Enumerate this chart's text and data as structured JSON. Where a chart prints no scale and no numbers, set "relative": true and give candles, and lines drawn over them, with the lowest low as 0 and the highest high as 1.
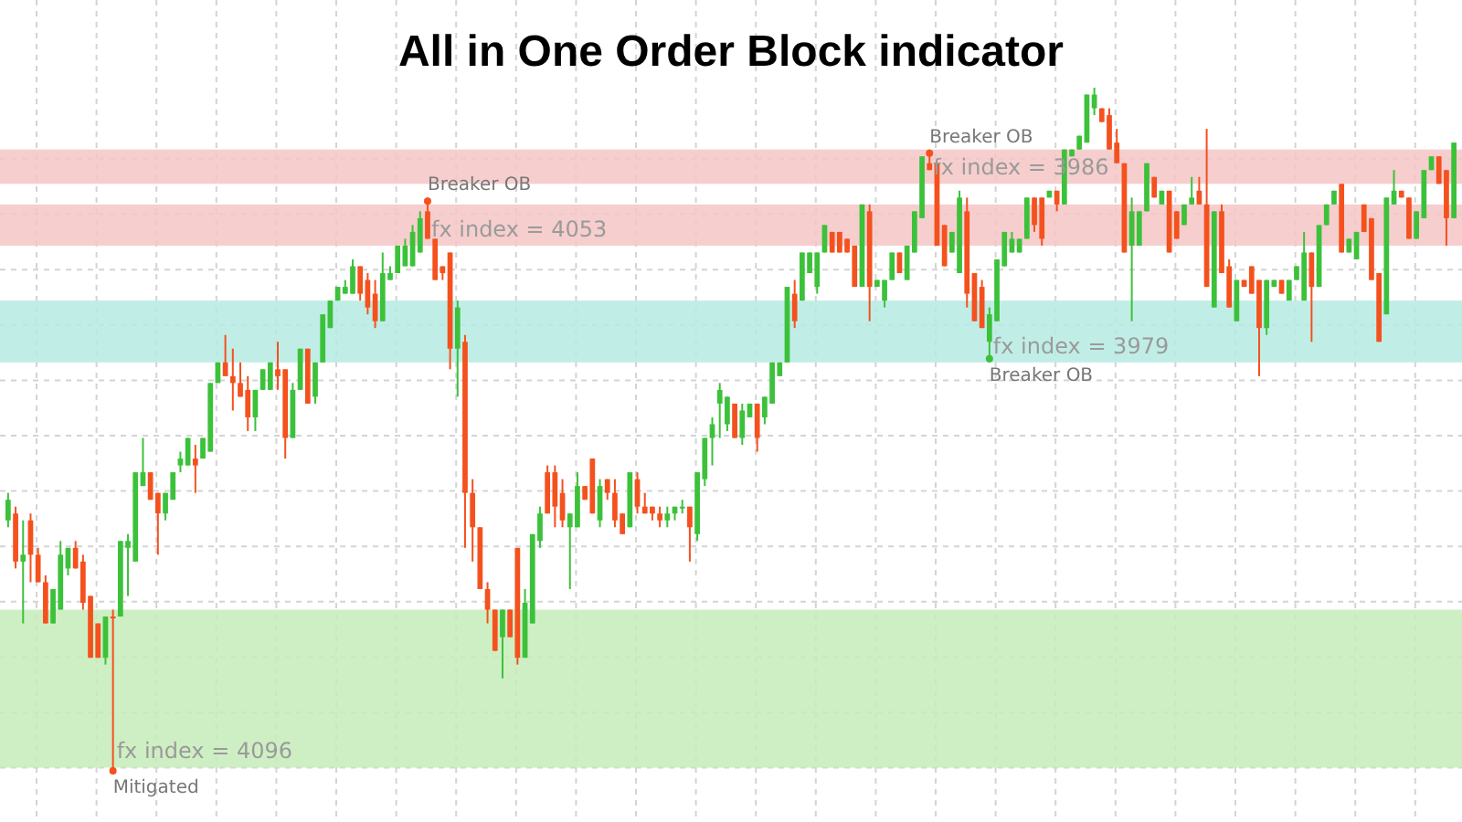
{
  "chart_data": {
    "type": "candlestick",
    "title": "All in One Order Block indicator",
    "relative": true,
    "grid": true,
    "colors": [
      "#3cc13b",
      "#f4511e",
      "#3cc13b",
      "#f4511e",
      "#f4511e",
      "#f4511e",
      "#3cc13b",
      "#3cc13b",
      "#3cc13b",
      "#f4511e",
      "#f4511e",
      "#f4511e",
      "#f4511e",
      "#3cc13b",
      "#f4511e",
      "#3cc13b",
      "#3cc13b",
      "#3cc13b",
      "#3cc13b",
      "#f4511e",
      "#f4511e",
      "#3cc13b",
      "#3cc13b",
      "#3cc13b",
      "#3cc13b",
      "#f4511e",
      "#3cc13b",
      "#3cc13b",
      "#3cc13b",
      "#f4511e",
      "#f4511e",
      "#f4511e",
      "#f4511e",
      "#3cc13b",
      "#3cc13b",
      "#3cc13b",
      "#f4511e",
      "#f4511e",
      "#3cc13b",
      "#3cc13b",
      "#f4511e",
      "#3cc13b",
      "#3cc13b",
      "#3cc13b",
      "#3cc13b",
      "#3cc13b",
      "#3cc13b",
      "#f4511e",
      "#f4511e",
      "#f4511e",
      "#3cc13b",
      "#3cc13b",
      "#3cc13b",
      "#3cc13b",
      "#3cc13b",
      "#3cc13b",
      "#f4511e",
      "#f4511e",
      "#f4511e",
      "#f4511e",
      "#3cc13b",
      "#f4511e",
      "#f4511e",
      "#f4511e",
      "#f4511e",
      "#f4511e",
      "#3cc13b",
      "#f4511e",
      "#f4511e",
      "#3cc13b",
      "#3cc13b",
      "#3cc13b",
      "#f4511e",
      "#f4511e",
      "#f4511e",
      "#3cc13b",
      "#3cc13b",
      "#f4511e",
      "#f4511e",
      "#3cc13b",
      "#f4511e",
      "#f4511e",
      "#f4511e",
      "#3cc13b",
      "#f4511e",
      "#f4511e",
      "#f4511e",
      "#f4511e",
      "#3cc13b",
      "#3cc13b",
      "#3cc13b",
      "#f4511e",
      "#3cc13b",
      "#3cc13b",
      "#3cc13b",
      "#3cc13b",
      "#3cc13b",
      "#f4511e",
      "#3cc13b",
      "#3cc13b",
      "#f4511e",
      "#3cc13b",
      "#3cc13b",
      "#3cc13b",
      "#3cc13b",
      "#f4511e",
      "#3cc13b",
      "#3cc13b",
      "#3cc13b",
      "#3cc13b",
      "#f4511e",
      "#f4511e",
      "#f4511e",
      "#f4511e",
      "#3cc13b",
      "#f4511e",
      "#3cc13b",
      "#3cc13b",
      "#3cc13b",
      "#f4511e",
      "#3cc13b",
      "#3cc13b",
      "#3cc13b",
      "#f4511e",
      "#f4511e",
      "#f4511e",
      "#3cc13b",
      "#3cc13b",
      "#f4511e",
      "#f4511e",
      "#f4511e",
      "#3cc13b",
      "#3cc13b",
      "#3cc13b",
      "#3cc13b",
      "#3cc13b",
      "#3cc13b",
      "#f4511e",
      "#f4511e",
      "#3cc13b",
      "#f4511e",
      "#3cc13b",
      "#3cc13b",
      "#3cc13b",
      "#3cc13b",
      "#3cc13b",
      "#f4511e",
      "#f4511e",
      "#f4511e",
      "#f4511e",
      "#3cc13b",
      "#3cc13b",
      "#3cc13b",
      "#f4511e",
      "#3cc13b",
      "#f4511e",
      "#f4511e",
      "#3cc13b",
      "#3cc13b",
      "#f4511e",
      "#f4511e",
      "#3cc13b",
      "#f4511e",
      "#f4511e",
      "#3cc13b",
      "#f4511e",
      "#f4511e",
      "#f4511e",
      "#3cc13b",
      "#3cc13b",
      "#f4511e",
      "#3cc13b",
      "#3cc13b",
      "#3cc13b",
      "#f4511e",
      "#3cc13b",
      "#3cc13b",
      "#3cc13b",
      "#f4511e",
      "#3cc13b",
      "#3cc13b",
      "#f4511e",
      "#f4511e",
      "#f4511e",
      "#3cc13b",
      "#3cc13b",
      "#f4511e",
      "#f4511e",
      "#3cc13b",
      "#3cc13b",
      "#3cc13b",
      "#f4511e",
      "#f4511e",
      "#3cc13b"
    ],
    "categories": [
      null,
      null,
      null,
      null,
      null,
      null,
      null,
      null,
      null,
      null,
      null,
      null,
      null,
      null,
      null,
      null,
      null,
      null,
      null,
      null,
      null,
      null,
      null,
      null,
      null,
      null,
      null,
      null,
      null,
      null,
      null,
      null,
      null,
      null,
      null,
      null,
      null,
      null,
      null,
      null,
      null,
      null,
      null,
      null,
      null,
      null,
      null,
      null,
      null,
      null,
      null,
      null,
      null,
      null,
      null,
      null,
      null,
      null,
      null,
      null,
      null,
      null,
      null,
      null,
      null,
      null,
      null,
      null,
      null,
      null,
      null,
      null,
      null,
      null,
      null,
      null,
      null,
      null,
      null,
      null,
      null,
      null,
      null,
      null,
      null,
      null,
      null,
      null,
      null,
      null,
      null,
      null,
      null,
      null,
      null,
      null,
      null,
      null,
      null,
      null,
      null,
      null,
      null,
      null,
      null,
      null,
      null,
      null,
      null,
      null,
      null,
      null,
      null,
      null,
      null,
      null,
      null,
      null,
      null,
      null,
      null,
      null,
      null,
      null,
      null,
      null,
      null,
      null,
      null,
      null,
      null,
      null,
      null,
      null,
      null,
      null,
      null,
      null,
      null,
      null,
      null,
      null,
      null,
      null,
      null,
      null,
      null,
      null,
      null,
      null,
      null,
      null,
      null,
      null,
      null,
      null,
      null,
      null,
      null,
      null,
      null,
      null,
      null,
      null,
      null,
      null,
      null,
      null,
      null,
      null,
      null,
      null,
      null,
      null,
      null,
      null,
      null,
      null,
      null,
      null,
      null,
      null,
      null,
      null,
      null,
      null,
      null,
      null,
      null,
      null,
      null,
      null,
      null,
      null
    ],
    "ohlc": [
      [
        0.37,
        0.41,
        0.36,
        0.4
      ],
      [
        0.38,
        0.39,
        0.3,
        0.31
      ],
      [
        0.31,
        0.37,
        0.22,
        0.32
      ],
      [
        0.37,
        0.38,
        0.28,
        0.32
      ],
      [
        0.32,
        0.33,
        0.28,
        0.28
      ],
      [
        0.28,
        0.29,
        0.22,
        0.22
      ],
      [
        0.22,
        0.27,
        0.22,
        0.27
      ],
      [
        0.24,
        0.34,
        0.24,
        0.32
      ],
      [
        0.3,
        0.33,
        0.29,
        0.33
      ],
      [
        0.33,
        0.34,
        0.3,
        0.3
      ],
      [
        0.31,
        0.32,
        0.24,
        0.25
      ],
      [
        0.26,
        0.26,
        0.17,
        0.17
      ],
      [
        0.22,
        0.22,
        0.17,
        0.17
      ],
      [
        0.17,
        0.23,
        0.16,
        0.23
      ],
      [
        0.23,
        0.24,
        0,
        0.23
      ],
      [
        0.23,
        0.34,
        0.23,
        0.34
      ],
      [
        0.33,
        0.35,
        0.26,
        0.34
      ],
      [
        0.31,
        0.44,
        0.31,
        0.44
      ],
      [
        0.42,
        0.49,
        0.42,
        0.44
      ],
      [
        0.44,
        0.44,
        0.4,
        0.4
      ],
      [
        0.41,
        0.41,
        0.32,
        0.38
      ],
      [
        0.38,
        0.41,
        0.37,
        0.41
      ],
      [
        0.4,
        0.44,
        0.4,
        0.44
      ],
      [
        0.45,
        0.47,
        0.44,
        0.46
      ],
      [
        0.45,
        0.49,
        0.45,
        0.49
      ],
      [
        0.46,
        0.48,
        0.41,
        0.45
      ],
      [
        0.46,
        0.49,
        0.46,
        0.49
      ],
      [
        0.47,
        0.57,
        0.47,
        0.57
      ],
      [
        0.57,
        0.6,
        0.57,
        0.6
      ],
      [
        0.6,
        0.64,
        0.58,
        0.58
      ],
      [
        0.58,
        0.62,
        0.53,
        0.57
      ],
      [
        0.57,
        0.6,
        0.55,
        0.55
      ],
      [
        0.56,
        0.58,
        0.5,
        0.52
      ],
      [
        0.52,
        0.56,
        0.5,
        0.56
      ],
      [
        0.56,
        0.59,
        0.56,
        0.59
      ],
      [
        0.56,
        0.6,
        0.56,
        0.6
      ],
      [
        0.59,
        0.63,
        0.56,
        0.58
      ],
      [
        0.59,
        0.59,
        0.46,
        0.49
      ],
      [
        0.49,
        0.57,
        0.49,
        0.56
      ],
      [
        0.56,
        0.62,
        0.56,
        0.62
      ],
      [
        0.62,
        0.62,
        0.54,
        0.54
      ],
      [
        0.55,
        0.6,
        0.54,
        0.6
      ],
      [
        0.6,
        0.67,
        0.6,
        0.67
      ],
      [
        0.65,
        0.69,
        0.65,
        0.69
      ],
      [
        0.69,
        0.71,
        0.69,
        0.71
      ],
      [
        0.7,
        0.72,
        0.7,
        0.71
      ],
      [
        0.7,
        0.75,
        0.7,
        0.74
      ],
      [
        0.74,
        0.74,
        0.69,
        0.7
      ],
      [
        0.72,
        0.73,
        0.67,
        0.68
      ],
      [
        0.7,
        0.72,
        0.65,
        0.66
      ],
      [
        0.66,
        0.76,
        0.66,
        0.73
      ],
      [
        0.72,
        0.74,
        0.72,
        0.73
      ],
      [
        0.73,
        0.77,
        0.73,
        0.77
      ],
      [
        0.74,
        0.78,
        0.74,
        0.77
      ],
      [
        0.74,
        0.8,
        0.74,
        0.79
      ],
      [
        0.76,
        0.82,
        0.76,
        0.81
      ],
      [
        0.82,
        0.84,
        0.78,
        0.78
      ],
      [
        0.78,
        0.78,
        0.72,
        0.72
      ],
      [
        0.74,
        0.74,
        0.72,
        0.73
      ],
      [
        0.76,
        0.76,
        0.59,
        0.62
      ],
      [
        0.62,
        0.69,
        0.55,
        0.68
      ],
      [
        0.63,
        0.64,
        0.33,
        0.41
      ],
      [
        0.41,
        0.43,
        0.31,
        0.36
      ],
      [
        0.36,
        0.36,
        0.27,
        0.27
      ],
      [
        0.27,
        0.28,
        0.22,
        0.24
      ],
      [
        0.24,
        0.24,
        0.18,
        0.18
      ],
      [
        0.2,
        0.24,
        0.14,
        0.24
      ],
      [
        0.24,
        0.24,
        0.2,
        0.2
      ],
      [
        0.33,
        0.33,
        0.16,
        0.17
      ],
      [
        0.17,
        0.27,
        0.17,
        0.25
      ],
      [
        0.22,
        0.35,
        0.22,
        0.35
      ],
      [
        0.34,
        0.39,
        0.33,
        0.38
      ],
      [
        0.44,
        0.45,
        0.38,
        0.38
      ],
      [
        0.44,
        0.45,
        0.36,
        0.39
      ],
      [
        0.41,
        0.43,
        0.36,
        0.37
      ],
      [
        0.36,
        0.38,
        0.27,
        0.38
      ],
      [
        0.36,
        0.44,
        0.36,
        0.42
      ],
      [
        0.42,
        0.42,
        0.4,
        0.4
      ],
      [
        0.46,
        0.46,
        0.38,
        0.38
      ],
      [
        0.37,
        0.43,
        0.36,
        0.42
      ],
      [
        0.43,
        0.43,
        0.4,
        0.41
      ],
      [
        0.41,
        0.43,
        0.36,
        0.37
      ],
      [
        0.38,
        0.38,
        0.35,
        0.35
      ],
      [
        0.36,
        0.44,
        0.36,
        0.44
      ],
      [
        0.43,
        0.44,
        0.38,
        0.39
      ],
      [
        0.39,
        0.41,
        0.38,
        0.38
      ],
      [
        0.39,
        0.39,
        0.37,
        0.38
      ],
      [
        0.38,
        0.39,
        0.36,
        0.37
      ],
      [
        0.37,
        0.39,
        0.36,
        0.38
      ],
      [
        0.38,
        0.39,
        0.37,
        0.39
      ],
      [
        0.39,
        0.4,
        0.38,
        0.39
      ],
      [
        0.39,
        0.39,
        0.31,
        0.36
      ],
      [
        0.35,
        0.44,
        0.34,
        0.44
      ],
      [
        0.43,
        0.49,
        0.42,
        0.49
      ],
      [
        0.49,
        0.52,
        0.45,
        0.51
      ],
      [
        0.54,
        0.57,
        0.49,
        0.56
      ],
      [
        0.51,
        0.55,
        0.5,
        0.55
      ],
      [
        0.54,
        0.54,
        0.49,
        0.49
      ],
      [
        0.49,
        0.54,
        0.48,
        0.53
      ],
      [
        0.52,
        0.54,
        0.52,
        0.54
      ],
      [
        0.54,
        0.54,
        0.47,
        0.49
      ],
      [
        0.52,
        0.55,
        0.51,
        0.55
      ],
      [
        0.54,
        0.6,
        0.54,
        0.6
      ],
      [
        0.58,
        0.6,
        0.58,
        0.6
      ],
      [
        0.6,
        0.71,
        0.6,
        0.71
      ],
      [
        0.7,
        0.72,
        0.65,
        0.66
      ],
      [
        0.69,
        0.76,
        0.69,
        0.76
      ],
      [
        0.73,
        0.76,
        0.73,
        0.76
      ],
      [
        0.71,
        0.76,
        0.7,
        0.76
      ],
      [
        0.76,
        0.8,
        0.76,
        0.8
      ],
      [
        0.79,
        0.79,
        0.76,
        0.76
      ],
      [
        0.79,
        0.79,
        0.76,
        0.76
      ],
      [
        0.78,
        0.78,
        0.76,
        0.76
      ],
      [
        0.77,
        0.77,
        0.71,
        0.71
      ],
      [
        0.71,
        0.83,
        0.71,
        0.83
      ],
      [
        0.82,
        0.83,
        0.66,
        0.71
      ],
      [
        0.71,
        0.72,
        0.71,
        0.72
      ],
      [
        0.69,
        0.72,
        0.68,
        0.72
      ],
      [
        0.72,
        0.76,
        0.72,
        0.76
      ],
      [
        0.76,
        0.76,
        0.73,
        0.73
      ],
      [
        0.72,
        0.77,
        0.72,
        0.77
      ],
      [
        0.76,
        0.82,
        0.76,
        0.82
      ],
      [
        0.81,
        0.9,
        0.81,
        0.9
      ],
      [
        0.89,
        0.91,
        0.88,
        0.88
      ],
      [
        0.89,
        0.89,
        0.77,
        0.77
      ],
      [
        0.8,
        0.8,
        0.74,
        0.74
      ],
      [
        0.76,
        0.79,
        0.76,
        0.79
      ],
      [
        0.73,
        0.85,
        0.73,
        0.84
      ],
      [
        0.82,
        0.84,
        0.68,
        0.7
      ],
      [
        0.73,
        0.73,
        0.66,
        0.66
      ],
      [
        0.71,
        0.72,
        0.65,
        0.65
      ],
      [
        0.63,
        0.68,
        0.6,
        0.67
      ],
      [
        0.66,
        0.75,
        0.66,
        0.75
      ],
      [
        0.74,
        0.79,
        0.74,
        0.79
      ],
      [
        0.76,
        0.79,
        0.76,
        0.78
      ],
      [
        0.76,
        0.78,
        0.76,
        0.78
      ],
      [
        0.78,
        0.84,
        0.78,
        0.84
      ],
      [
        0.84,
        0.84,
        0.79,
        0.8
      ],
      [
        0.84,
        0.84,
        0.77,
        0.78
      ],
      [
        0.84,
        0.85,
        0.84,
        0.85
      ],
      [
        0.85,
        0.85,
        0.82,
        0.83
      ],
      [
        0.83,
        0.91,
        0.83,
        0.91
      ],
      [
        0.9,
        0.91,
        0.9,
        0.91
      ],
      [
        0.91,
        0.93,
        0.91,
        0.93
      ],
      [
        0.92,
        0.99,
        0.92,
        0.99
      ],
      [
        0.97,
        1,
        0.96,
        0.99
      ],
      [
        0.97,
        0.97,
        0.95,
        0.95
      ],
      [
        0.96,
        0.97,
        0.91,
        0.91
      ],
      [
        0.92,
        0.94,
        0.89,
        0.89
      ],
      [
        0.89,
        0.89,
        0.76,
        0.76
      ],
      [
        0.77,
        0.84,
        0.66,
        0.82
      ],
      [
        0.77,
        0.82,
        0.77,
        0.82
      ],
      [
        0.82,
        0.89,
        0.82,
        0.89
      ],
      [
        0.87,
        0.87,
        0.84,
        0.84
      ],
      [
        0.83,
        0.85,
        0.83,
        0.85
      ],
      [
        0.85,
        0.85,
        0.76,
        0.76
      ],
      [
        0.82,
        0.82,
        0.78,
        0.78
      ],
      [
        0.8,
        0.83,
        0.8,
        0.83
      ],
      [
        0.83,
        0.87,
        0.83,
        0.84
      ],
      [
        0.85,
        0.87,
        0.83,
        0.83
      ],
      [
        0.83,
        0.94,
        0.71,
        0.71
      ],
      [
        0.68,
        0.82,
        0.68,
        0.82
      ],
      [
        0.82,
        0.83,
        0.73,
        0.73
      ],
      [
        0.74,
        0.75,
        0.68,
        0.68
      ],
      [
        0.66,
        0.72,
        0.66,
        0.72
      ],
      [
        0.72,
        0.72,
        0.71,
        0.71
      ],
      [
        0.74,
        0.74,
        0.7,
        0.7
      ],
      [
        0.72,
        0.72,
        0.58,
        0.65
      ],
      [
        0.65,
        0.72,
        0.64,
        0.72
      ],
      [
        0.71,
        0.72,
        0.71,
        0.72
      ],
      [
        0.72,
        0.72,
        0.7,
        0.7
      ],
      [
        0.69,
        0.72,
        0.69,
        0.72
      ],
      [
        0.72,
        0.74,
        0.72,
        0.74
      ],
      [
        0.69,
        0.79,
        0.69,
        0.76
      ],
      [
        0.76,
        0.76,
        0.63,
        0.71
      ],
      [
        0.71,
        0.8,
        0.71,
        0.8
      ],
      [
        0.8,
        0.83,
        0.8,
        0.83
      ],
      [
        0.83,
        0.85,
        0.83,
        0.85
      ],
      [
        0.86,
        0.86,
        0.76,
        0.76
      ],
      [
        0.76,
        0.78,
        0.76,
        0.78
      ],
      [
        0.75,
        0.79,
        0.75,
        0.79
      ],
      [
        0.83,
        0.83,
        0.79,
        0.79
      ],
      [
        0.81,
        0.81,
        0.72,
        0.72
      ],
      [
        0.73,
        0.73,
        0.63,
        0.63
      ],
      [
        0.67,
        0.84,
        0.67,
        0.84
      ],
      [
        0.83,
        0.88,
        0.83,
        0.85
      ],
      [
        0.85,
        0.85,
        0.84,
        0.84
      ],
      [
        0.84,
        0.84,
        0.78,
        0.78
      ],
      [
        0.78,
        0.82,
        0.78,
        0.82
      ],
      [
        0.81,
        0.88,
        0.81,
        0.88
      ],
      [
        0.88,
        0.9,
        0.88,
        0.9
      ],
      [
        0.9,
        0.9,
        0.86,
        0.86
      ],
      [
        0.88,
        0.88,
        0.77,
        0.81
      ],
      [
        0.81,
        0.92,
        0.81,
        0.92
      ]
    ],
    "bands": [
      {
        "axis": "y",
        "from": 0.01,
        "to": 0.24,
        "label": "fx index = 4096",
        "color": "#c5ecb9"
      },
      {
        "axis": "y",
        "from": 0.77,
        "to": 0.83,
        "label": "fx index = 4053",
        "color": "#f5c5c6"
      },
      {
        "axis": "y",
        "from": 0.86,
        "to": 0.91,
        "label": "fx index = 3986",
        "color": "#f5c5c6"
      },
      {
        "axis": "y",
        "from": 0.6,
        "to": 0.69,
        "label": "fx index = 3979",
        "color": "#b5ebe2"
      }
    ],
    "annotations": [
      {
        "text": "Mitigated",
        "y": 0
      },
      {
        "text": "Breaker OB",
        "y": 0.84
      },
      {
        "text": "Breaker OB",
        "y": 0.91
      },
      {
        "text": "Breaker OB",
        "y": 0.6
      }
    ]
  }
}
